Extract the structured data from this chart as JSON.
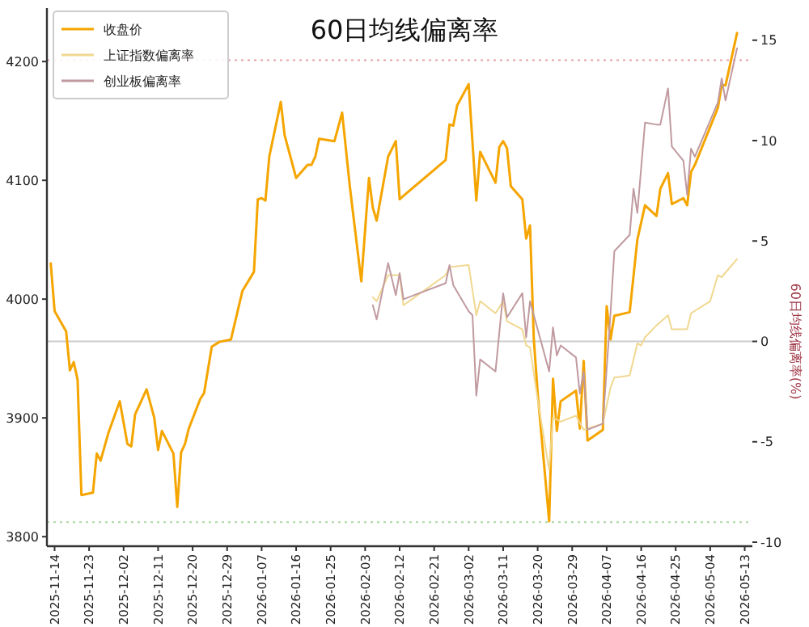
{
  "chart_data": {
    "type": "line",
    "title": "60日均线偏离率",
    "y2label": "60日均线偏离率(%)",
    "legend": "top left",
    "grid": false,
    "xlim": [
      "2025-11-12",
      "2026-05-15"
    ],
    "xticks": [
      "2025-11-14",
      "2025-11-23",
      "2025-12-02",
      "2025-12-11",
      "2025-12-20",
      "2025-12-29",
      "2026-01-07",
      "2026-01-16",
      "2026-01-25",
      "2026-02-03",
      "2026-02-12",
      "2026-02-21",
      "2026-03-02",
      "2026-03-11",
      "2026-03-20",
      "2026-03-29",
      "2026-04-07",
      "2026-04-16",
      "2026-04-25",
      "2026-05-04",
      "2026-05-13"
    ],
    "ylim": [
      3792,
      4245
    ],
    "yticks": [
      3800,
      3900,
      4000,
      4100,
      4200
    ],
    "y2lim": [
      -10.2,
      16.6
    ],
    "y2ticks": [
      -10,
      -5,
      0,
      5,
      10,
      15
    ],
    "ref_lines": [
      {
        "axis": "y2",
        "value": 0,
        "color": "#cccccc",
        "line_style": "solid"
      },
      {
        "axis": "y2",
        "value": 14,
        "color": "#e8a0a8",
        "line_style": "dotted"
      },
      {
        "axis": "y2",
        "value": -9,
        "color": "#a8d8a0",
        "line_style": "dotted"
      }
    ],
    "series": [
      {
        "name": "收盘价",
        "color": "#f5a500",
        "x": [
          "2025-11-13",
          "2025-11-14",
          "2025-11-17",
          "2025-11-18",
          "2025-11-19",
          "2025-11-20",
          "2025-11-21",
          "2025-11-24",
          "2025-11-25",
          "2025-11-26",
          "2025-11-28",
          "2025-12-01",
          "2025-12-03",
          "2025-12-04",
          "2025-12-05",
          "2025-12-08",
          "2025-12-10",
          "2025-12-11",
          "2025-12-12",
          "2025-12-15",
          "2025-12-16",
          "2025-12-17",
          "2025-12-18",
          "2025-12-19",
          "2025-12-22",
          "2025-12-23",
          "2025-12-25",
          "2025-12-27",
          "2025-12-30",
          "2026-01-02",
          "2026-01-05",
          "2026-01-06",
          "2026-01-07",
          "2026-01-08",
          "2026-01-09",
          "2026-01-12",
          "2026-01-13",
          "2026-01-16",
          "2026-01-19",
          "2026-01-20",
          "2026-01-21",
          "2026-01-22",
          "2026-01-26",
          "2026-01-28",
          "2026-01-30",
          "2026-02-02",
          "2026-02-04",
          "2026-02-05",
          "2026-02-06",
          "2026-02-09",
          "2026-02-11",
          "2026-02-12",
          "2026-02-13",
          "2026-02-24",
          "2026-02-25",
          "2026-02-26",
          "2026-02-27",
          "2026-03-02",
          "2026-03-04",
          "2026-03-05",
          "2026-03-09",
          "2026-03-10",
          "2026-03-11",
          "2026-03-12",
          "2026-03-13",
          "2026-03-16",
          "2026-03-17",
          "2026-03-18",
          "2026-03-19",
          "2026-03-20",
          "2026-03-23",
          "2026-03-24",
          "2026-03-25",
          "2026-03-26",
          "2026-03-30",
          "2026-03-31",
          "2026-04-01",
          "2026-04-02",
          "2026-04-06",
          "2026-04-07",
          "2026-04-08",
          "2026-04-09",
          "2026-04-13",
          "2026-04-15",
          "2026-04-17",
          "2026-04-20",
          "2026-04-21",
          "2026-04-23",
          "2026-04-24",
          "2026-04-27",
          "2026-04-28",
          "2026-04-29",
          "2026-04-30",
          "2026-05-06",
          "2026-05-07",
          "2026-05-08",
          "2026-05-11"
        ],
        "values": [
          4030,
          3990,
          3973,
          3940,
          3947,
          3932,
          3835,
          3837,
          3870,
          3864,
          3887,
          3914,
          3878,
          3876,
          3903,
          3924,
          3900,
          3873,
          3889,
          3870,
          3825,
          3871,
          3878,
          3891,
          3916,
          3921,
          3960,
          3964,
          3966,
          4007,
          4023,
          4084,
          4085,
          4083,
          4120,
          4166,
          4138,
          4102,
          4113,
          4113,
          4120,
          4135,
          4133,
          4157,
          4095,
          4015,
          4102,
          4077,
          4066,
          4120,
          4133,
          4084,
          4087,
          4117,
          4147,
          4146,
          4163,
          4181,
          4083,
          4124,
          4098,
          4128,
          4133,
          4127,
          4095,
          4084,
          4051,
          4062,
          3966,
          3921,
          3813,
          3933,
          3889,
          3914,
          3923,
          3891,
          3948,
          3881,
          3890,
          3994,
          3966,
          3986,
          3989,
          4050,
          4079,
          4070,
          4093,
          4106,
          4080,
          4085,
          4079,
          4107,
          4113,
          4161,
          4180,
          4180,
          4224
        ]
      },
      {
        "name": "上证指数偏离率",
        "color": "#f0d890",
        "axis": "y2",
        "x": [
          "2026-02-05",
          "2026-02-06",
          "2026-02-09",
          "2026-02-12",
          "2026-02-13",
          "2026-02-24",
          "2026-02-25",
          "2026-03-02",
          "2026-03-04",
          "2026-03-05",
          "2026-03-09",
          "2026-03-11",
          "2026-03-12",
          "2026-03-16",
          "2026-03-17",
          "2026-03-18",
          "2026-03-20",
          "2026-03-23",
          "2026-03-24",
          "2026-03-26",
          "2026-03-30",
          "2026-04-01",
          "2026-04-06",
          "2026-04-08",
          "2026-04-09",
          "2026-04-13",
          "2026-04-15",
          "2026-04-16",
          "2026-04-17",
          "2026-04-20",
          "2026-04-23",
          "2026-04-24",
          "2026-04-28",
          "2026-04-29",
          "2026-05-04",
          "2026-05-06",
          "2026-05-07",
          "2026-05-11"
        ],
        "values": [
          2.2,
          2.0,
          3.3,
          3.3,
          1.8,
          3.3,
          3.7,
          3.8,
          1.3,
          2.0,
          1.4,
          2.0,
          1.0,
          0.6,
          -0.2,
          -0.3,
          -2.9,
          -6.4,
          -3.8,
          -4.0,
          -3.7,
          -4.4,
          -4.1,
          -2.3,
          -1.8,
          -1.7,
          -0.1,
          -0.2,
          0.2,
          0.8,
          1.3,
          0.6,
          0.6,
          1.4,
          2.0,
          3.3,
          3.2,
          4.1
        ]
      },
      {
        "name": "创业板偏离率",
        "color": "#c09aa0",
        "axis": "y2",
        "x": [
          "2026-02-05",
          "2026-02-06",
          "2026-02-09",
          "2026-02-11",
          "2026-02-12",
          "2026-02-13",
          "2026-02-24",
          "2026-02-25",
          "2026-02-26",
          "2026-03-02",
          "2026-03-03",
          "2026-03-04",
          "2026-03-05",
          "2026-03-09",
          "2026-03-11",
          "2026-03-12",
          "2026-03-16",
          "2026-03-17",
          "2026-03-18",
          "2026-03-19",
          "2026-03-23",
          "2026-03-24",
          "2026-03-25",
          "2026-03-26",
          "2026-03-30",
          "2026-03-31",
          "2026-04-01",
          "2026-04-02",
          "2026-04-06",
          "2026-04-08",
          "2026-04-09",
          "2026-04-13",
          "2026-04-14",
          "2026-04-15",
          "2026-04-17",
          "2026-04-20",
          "2026-04-21",
          "2026-04-23",
          "2026-04-24",
          "2026-04-27",
          "2026-04-28",
          "2026-04-29",
          "2026-04-30",
          "2026-05-06",
          "2026-05-07",
          "2026-05-08",
          "2026-05-11"
        ],
        "values": [
          1.8,
          1.1,
          3.9,
          2.3,
          3.4,
          2.1,
          2.9,
          3.8,
          2.8,
          1.5,
          1.3,
          -2.7,
          -0.9,
          -1.5,
          2.4,
          1.2,
          2.4,
          0.2,
          2.0,
          1.3,
          -1.5,
          0.7,
          -0.7,
          -0.2,
          -0.8,
          -2.6,
          -1.5,
          -4.4,
          -4.1,
          1.4,
          4.5,
          5.3,
          7.6,
          6.4,
          10.9,
          10.8,
          10.8,
          12.6,
          9.7,
          9.0,
          7.3,
          9.6,
          9.2,
          11.9,
          13.1,
          12.0,
          14.6
        ]
      }
    ]
  }
}
